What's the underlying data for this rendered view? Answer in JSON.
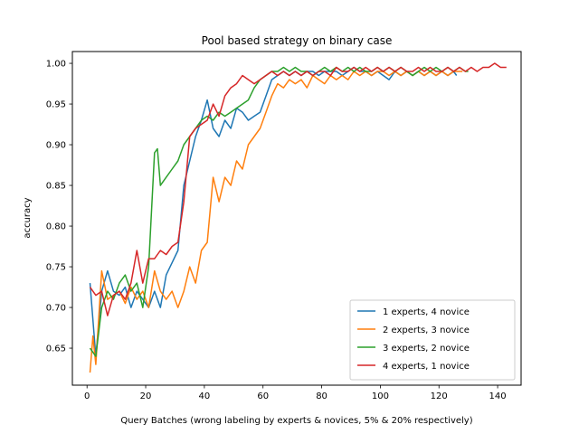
{
  "chart_data": {
    "type": "line",
    "title": "Pool based strategy on binary case",
    "xlabel": "Query Batches (wrong labeling by experts & novices, 5% & 20% respectively)",
    "ylabel": "accuracy",
    "xlim": [
      -5,
      148
    ],
    "ylim": [
      0.6045,
      1.0145
    ],
    "xticks": [
      0,
      20,
      40,
      60,
      80,
      100,
      120,
      140
    ],
    "xtick_labels": [
      "0",
      "20",
      "40",
      "60",
      "80",
      "100",
      "120",
      "140"
    ],
    "yticks": [
      0.65,
      0.7,
      0.75,
      0.8,
      0.85,
      0.9,
      0.95,
      1.0
    ],
    "ytick_labels": [
      "0.65",
      "0.70",
      "0.75",
      "0.80",
      "0.85",
      "0.90",
      "0.95",
      "1.00"
    ],
    "grid": false,
    "legend_position": "lower-right",
    "series": [
      {
        "name": "1 experts, 4 novice",
        "color": "#1f77b4",
        "points": [
          [
            1,
            0.73
          ],
          [
            3,
            0.64
          ],
          [
            5,
            0.72
          ],
          [
            7,
            0.745
          ],
          [
            9,
            0.72
          ],
          [
            11,
            0.715
          ],
          [
            13,
            0.725
          ],
          [
            15,
            0.7
          ],
          [
            17,
            0.72
          ],
          [
            19,
            0.71
          ],
          [
            21,
            0.7
          ],
          [
            23,
            0.72
          ],
          [
            25,
            0.7
          ],
          [
            27,
            0.74
          ],
          [
            29,
            0.755
          ],
          [
            31,
            0.77
          ],
          [
            33,
            0.85
          ],
          [
            35,
            0.88
          ],
          [
            37,
            0.91
          ],
          [
            39,
            0.93
          ],
          [
            41,
            0.955
          ],
          [
            43,
            0.92
          ],
          [
            45,
            0.91
          ],
          [
            47,
            0.93
          ],
          [
            49,
            0.92
          ],
          [
            51,
            0.945
          ],
          [
            53,
            0.94
          ],
          [
            55,
            0.93
          ],
          [
            57,
            0.935
          ],
          [
            59,
            0.94
          ],
          [
            61,
            0.96
          ],
          [
            63,
            0.98
          ],
          [
            65,
            0.985
          ],
          [
            67,
            0.99
          ],
          [
            69,
            0.985
          ],
          [
            71,
            0.99
          ],
          [
            73,
            0.985
          ],
          [
            75,
            0.99
          ],
          [
            77,
            0.99
          ],
          [
            79,
            0.985
          ],
          [
            81,
            0.99
          ],
          [
            83,
            0.99
          ],
          [
            85,
            0.99
          ],
          [
            87,
            0.985
          ],
          [
            89,
            0.99
          ],
          [
            91,
            0.995
          ],
          [
            93,
            0.99
          ],
          [
            95,
            0.99
          ],
          [
            97,
            0.985
          ],
          [
            99,
            0.99
          ],
          [
            101,
            0.985
          ],
          [
            103,
            0.98
          ],
          [
            105,
            0.99
          ],
          [
            107,
            0.985
          ],
          [
            109,
            0.99
          ],
          [
            111,
            0.985
          ],
          [
            113,
            0.99
          ],
          [
            115,
            0.985
          ],
          [
            117,
            0.99
          ],
          [
            119,
            0.985
          ],
          [
            121,
            0.99
          ],
          [
            123,
            0.985
          ],
          [
            125,
            0.99
          ],
          [
            126,
            0.985
          ]
        ]
      },
      {
        "name": "2 experts, 3 novice",
        "color": "#ff7f0e",
        "points": [
          [
            1,
            0.62
          ],
          [
            2,
            0.665
          ],
          [
            3,
            0.63
          ],
          [
            5,
            0.745
          ],
          [
            7,
            0.71
          ],
          [
            9,
            0.715
          ],
          [
            11,
            0.72
          ],
          [
            13,
            0.705
          ],
          [
            15,
            0.725
          ],
          [
            17,
            0.71
          ],
          [
            19,
            0.72
          ],
          [
            21,
            0.7
          ],
          [
            23,
            0.745
          ],
          [
            25,
            0.72
          ],
          [
            27,
            0.71
          ],
          [
            29,
            0.72
          ],
          [
            31,
            0.7
          ],
          [
            33,
            0.72
          ],
          [
            35,
            0.75
          ],
          [
            37,
            0.73
          ],
          [
            39,
            0.77
          ],
          [
            41,
            0.78
          ],
          [
            43,
            0.86
          ],
          [
            45,
            0.83
          ],
          [
            47,
            0.86
          ],
          [
            49,
            0.85
          ],
          [
            51,
            0.88
          ],
          [
            53,
            0.87
          ],
          [
            55,
            0.9
          ],
          [
            57,
            0.91
          ],
          [
            59,
            0.92
          ],
          [
            61,
            0.94
          ],
          [
            63,
            0.96
          ],
          [
            65,
            0.975
          ],
          [
            67,
            0.97
          ],
          [
            69,
            0.98
          ],
          [
            71,
            0.975
          ],
          [
            73,
            0.98
          ],
          [
            75,
            0.97
          ],
          [
            77,
            0.985
          ],
          [
            79,
            0.98
          ],
          [
            81,
            0.975
          ],
          [
            83,
            0.985
          ],
          [
            85,
            0.98
          ],
          [
            87,
            0.985
          ],
          [
            89,
            0.98
          ],
          [
            91,
            0.99
          ],
          [
            93,
            0.985
          ],
          [
            95,
            0.99
          ],
          [
            97,
            0.985
          ],
          [
            99,
            0.99
          ],
          [
            101,
            0.99
          ],
          [
            103,
            0.985
          ],
          [
            105,
            0.99
          ],
          [
            107,
            0.985
          ],
          [
            109,
            0.99
          ],
          [
            111,
            0.985
          ],
          [
            113,
            0.99
          ],
          [
            115,
            0.985
          ],
          [
            117,
            0.99
          ],
          [
            119,
            0.985
          ],
          [
            121,
            0.99
          ],
          [
            123,
            0.985
          ],
          [
            125,
            0.99
          ],
          [
            128,
            0.99
          ]
        ]
      },
      {
        "name": "3 experts, 2 novice",
        "color": "#2ca02c",
        "points": [
          [
            1,
            0.65
          ],
          [
            3,
            0.64
          ],
          [
            5,
            0.7
          ],
          [
            7,
            0.72
          ],
          [
            9,
            0.71
          ],
          [
            11,
            0.73
          ],
          [
            13,
            0.74
          ],
          [
            15,
            0.72
          ],
          [
            17,
            0.73
          ],
          [
            19,
            0.7
          ],
          [
            21,
            0.75
          ],
          [
            23,
            0.89
          ],
          [
            24,
            0.895
          ],
          [
            25,
            0.85
          ],
          [
            27,
            0.86
          ],
          [
            29,
            0.87
          ],
          [
            31,
            0.88
          ],
          [
            33,
            0.9
          ],
          [
            35,
            0.91
          ],
          [
            37,
            0.92
          ],
          [
            39,
            0.93
          ],
          [
            41,
            0.935
          ],
          [
            43,
            0.93
          ],
          [
            45,
            0.94
          ],
          [
            47,
            0.935
          ],
          [
            49,
            0.94
          ],
          [
            51,
            0.945
          ],
          [
            53,
            0.95
          ],
          [
            55,
            0.955
          ],
          [
            57,
            0.97
          ],
          [
            59,
            0.98
          ],
          [
            61,
            0.985
          ],
          [
            63,
            0.99
          ],
          [
            65,
            0.99
          ],
          [
            67,
            0.995
          ],
          [
            69,
            0.99
          ],
          [
            71,
            0.995
          ],
          [
            73,
            0.99
          ],
          [
            75,
            0.99
          ],
          [
            77,
            0.985
          ],
          [
            79,
            0.99
          ],
          [
            81,
            0.995
          ],
          [
            83,
            0.99
          ],
          [
            85,
            0.995
          ],
          [
            87,
            0.99
          ],
          [
            89,
            0.995
          ],
          [
            91,
            0.99
          ],
          [
            93,
            0.995
          ],
          [
            95,
            0.99
          ],
          [
            97,
            0.99
          ],
          [
            99,
            0.995
          ],
          [
            101,
            0.99
          ],
          [
            103,
            0.995
          ],
          [
            105,
            0.99
          ],
          [
            107,
            0.995
          ],
          [
            109,
            0.99
          ],
          [
            111,
            0.985
          ],
          [
            113,
            0.99
          ],
          [
            115,
            0.995
          ],
          [
            117,
            0.99
          ],
          [
            119,
            0.995
          ],
          [
            121,
            0.99
          ],
          [
            123,
            0.995
          ],
          [
            125,
            0.99
          ],
          [
            127,
            0.995
          ],
          [
            129,
            0.99
          ],
          [
            130,
            0.99
          ]
        ]
      },
      {
        "name": "4 experts, 1 novice",
        "color": "#d62728",
        "points": [
          [
            1,
            0.725
          ],
          [
            3,
            0.715
          ],
          [
            5,
            0.72
          ],
          [
            7,
            0.69
          ],
          [
            9,
            0.715
          ],
          [
            11,
            0.72
          ],
          [
            13,
            0.71
          ],
          [
            15,
            0.73
          ],
          [
            17,
            0.77
          ],
          [
            19,
            0.73
          ],
          [
            21,
            0.76
          ],
          [
            23,
            0.76
          ],
          [
            25,
            0.77
          ],
          [
            27,
            0.765
          ],
          [
            29,
            0.775
          ],
          [
            31,
            0.78
          ],
          [
            33,
            0.83
          ],
          [
            35,
            0.91
          ],
          [
            37,
            0.92
          ],
          [
            39,
            0.925
          ],
          [
            41,
            0.93
          ],
          [
            43,
            0.95
          ],
          [
            45,
            0.935
          ],
          [
            47,
            0.96
          ],
          [
            49,
            0.97
          ],
          [
            51,
            0.975
          ],
          [
            53,
            0.985
          ],
          [
            55,
            0.98
          ],
          [
            57,
            0.975
          ],
          [
            59,
            0.98
          ],
          [
            61,
            0.985
          ],
          [
            63,
            0.99
          ],
          [
            65,
            0.985
          ],
          [
            67,
            0.99
          ],
          [
            69,
            0.985
          ],
          [
            71,
            0.99
          ],
          [
            73,
            0.985
          ],
          [
            75,
            0.99
          ],
          [
            77,
            0.985
          ],
          [
            79,
            0.99
          ],
          [
            81,
            0.99
          ],
          [
            83,
            0.985
          ],
          [
            85,
            0.995
          ],
          [
            87,
            0.99
          ],
          [
            89,
            0.99
          ],
          [
            91,
            0.995
          ],
          [
            93,
            0.99
          ],
          [
            95,
            0.995
          ],
          [
            97,
            0.99
          ],
          [
            99,
            0.995
          ],
          [
            101,
            0.99
          ],
          [
            103,
            0.995
          ],
          [
            105,
            0.99
          ],
          [
            107,
            0.995
          ],
          [
            109,
            0.99
          ],
          [
            111,
            0.99
          ],
          [
            113,
            0.995
          ],
          [
            115,
            0.99
          ],
          [
            117,
            0.995
          ],
          [
            119,
            0.99
          ],
          [
            121,
            0.99
          ],
          [
            123,
            0.995
          ],
          [
            125,
            0.99
          ],
          [
            127,
            0.995
          ],
          [
            129,
            0.99
          ],
          [
            131,
            0.995
          ],
          [
            133,
            0.99
          ],
          [
            135,
            0.995
          ],
          [
            137,
            0.995
          ],
          [
            139,
            1.0
          ],
          [
            141,
            0.995
          ],
          [
            143,
            0.995
          ]
        ]
      }
    ]
  }
}
